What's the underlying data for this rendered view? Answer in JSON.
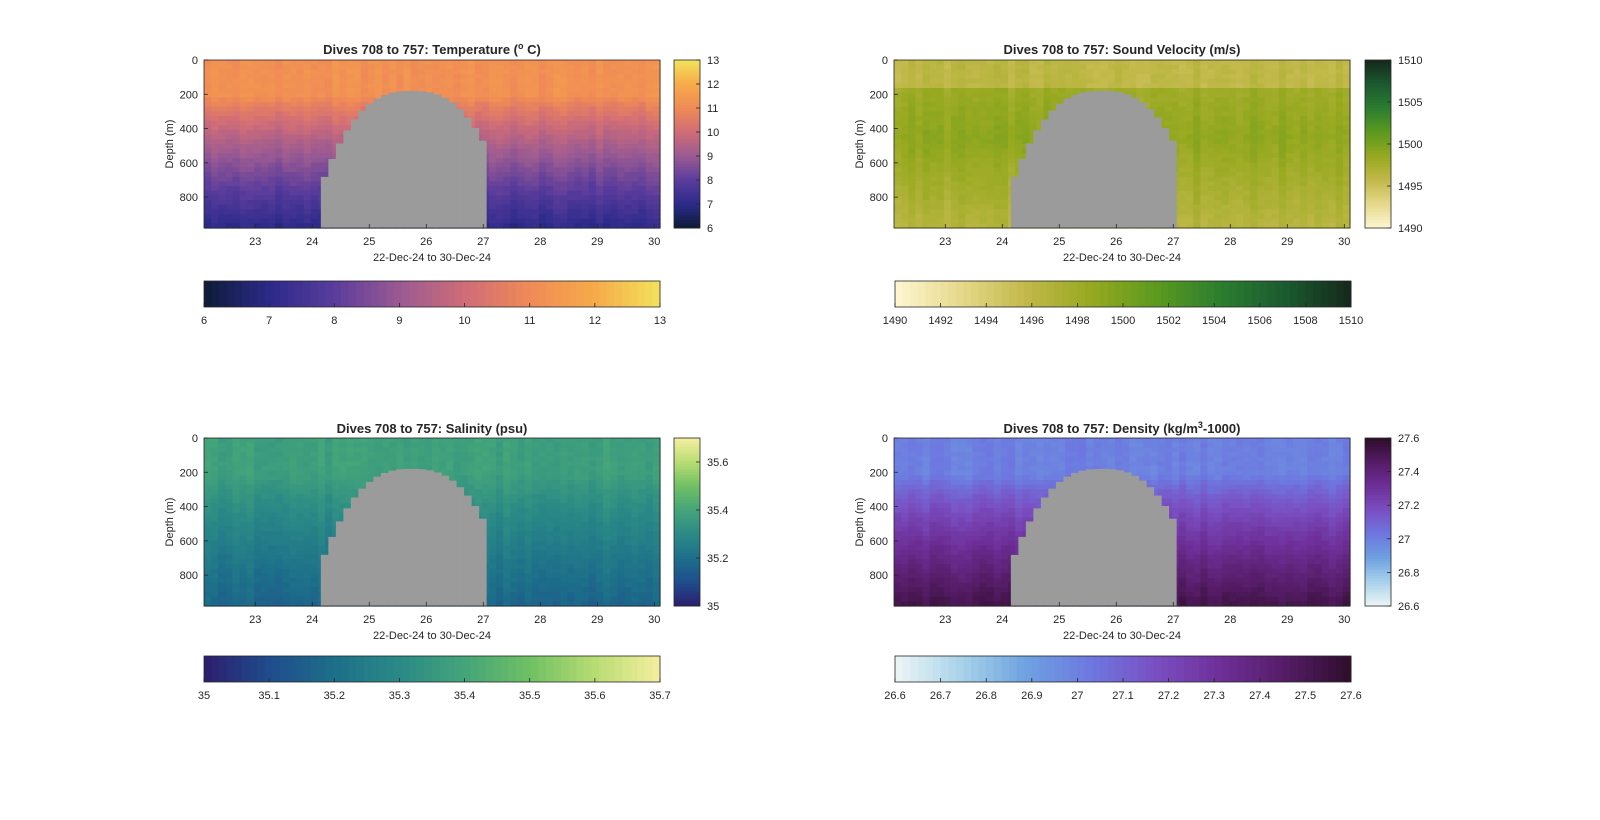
{
  "chart_data": [
    {
      "type": "heatmap",
      "title": "Dives 708 to 757: Temperature (",
      "title_sup": "o",
      "title_suffix": " C)",
      "xlabel": "22-Dec-24 to 30-Dec-24",
      "ylabel": "Depth (m)",
      "x": {
        "range": [
          22.1,
          30.1
        ],
        "ticks": [
          23,
          24,
          25,
          26,
          27,
          28,
          29,
          30
        ],
        "tick_labels": [
          "23",
          "24",
          "25",
          "26",
          "27",
          "28",
          "29",
          "30"
        ]
      },
      "y": {
        "range": [
          0,
          980
        ],
        "reversed": true,
        "ticks": [
          0,
          200,
          400,
          600,
          800
        ],
        "tick_labels": [
          "0",
          "200",
          "400",
          "600",
          "800"
        ]
      },
      "colormap": [
        "#0d1b35",
        "#2c2a8a",
        "#5a3c9c",
        "#9a5a92",
        "#cf6c78",
        "#f08a56",
        "#f6aa49",
        "#f3e25c"
      ],
      "clim": [
        6,
        13
      ],
      "side_colorbar": {
        "ticks": [
          6,
          7,
          8,
          9,
          10,
          11,
          12,
          13
        ],
        "tick_labels": [
          "6",
          "7",
          "8",
          "9",
          "10",
          "11",
          "12",
          "13"
        ]
      },
      "bottom_colorbar": {
        "ticks": [
          6,
          7,
          8,
          9,
          10,
          11,
          12,
          13
        ],
        "tick_labels": [
          "6",
          "7",
          "8",
          "9",
          "10",
          "11",
          "12",
          "13"
        ]
      },
      "profile": {
        "surface_value": 11.2,
        "mixed_layer_depth": 210,
        "deep_value": 7.0
      },
      "gap": {
        "x_start": 24.15,
        "x_end": 27.05,
        "color": "#9b9b9b"
      }
    },
    {
      "type": "heatmap",
      "title": "Dives 708 to 757: Sound Velocity (m/s)",
      "xlabel": "22-Dec-24 to 30-Dec-24",
      "ylabel": "Depth (m)",
      "x": {
        "range": [
          22.1,
          30.1
        ],
        "ticks": [
          23,
          24,
          25,
          26,
          27,
          28,
          29,
          30
        ],
        "tick_labels": [
          "23",
          "24",
          "25",
          "26",
          "27",
          "28",
          "29",
          "30"
        ]
      },
      "y": {
        "range": [
          0,
          980
        ],
        "reversed": true,
        "ticks": [
          0,
          200,
          400,
          600,
          800
        ],
        "tick_labels": [
          "0",
          "200",
          "400",
          "600",
          "800"
        ]
      },
      "colormap": [
        "#fdf7d2",
        "#e6d98c",
        "#c2b94a",
        "#97a920",
        "#5c9a1f",
        "#2b7d2f",
        "#1b5a30",
        "#15281a"
      ],
      "clim": [
        1490,
        1510
      ],
      "side_colorbar": {
        "ticks": [
          1490,
          1495,
          1500,
          1505,
          1510
        ],
        "tick_labels": [
          "1490",
          "1495",
          "1500",
          "1505",
          "1510"
        ]
      },
      "bottom_colorbar": {
        "ticks": [
          1490,
          1492,
          1494,
          1496,
          1498,
          1500,
          1502,
          1504,
          1506,
          1508,
          1510
        ],
        "tick_labels": [
          "1490",
          "1492",
          "1494",
          "1496",
          "1498",
          "1500",
          "1502",
          "1504",
          "1506",
          "1508",
          "1510"
        ]
      },
      "profile": {
        "surface_value": 1496.0,
        "mixed_layer_depth": 160,
        "deep_value": 1496.5,
        "mid_value": 1499.0
      },
      "gap": {
        "x_start": 24.15,
        "x_end": 27.05,
        "color": "#9b9b9b"
      }
    },
    {
      "type": "heatmap",
      "title": "Dives 708 to 757: Salinity (psu)",
      "xlabel": "22-Dec-24 to 30-Dec-24",
      "ylabel": "Depth (m)",
      "x": {
        "range": [
          22.1,
          30.1
        ],
        "ticks": [
          23,
          24,
          25,
          26,
          27,
          28,
          29,
          30
        ],
        "tick_labels": [
          "23",
          "24",
          "25",
          "26",
          "27",
          "28",
          "29",
          "30"
        ]
      },
      "y": {
        "range": [
          0,
          980
        ],
        "reversed": true,
        "ticks": [
          0,
          200,
          400,
          600,
          800
        ],
        "tick_labels": [
          "0",
          "200",
          "400",
          "600",
          "800"
        ]
      },
      "colormap": [
        "#2d1e6e",
        "#1f4c8c",
        "#1d6f8a",
        "#2a8a86",
        "#44a47a",
        "#6fc063",
        "#b8dc74",
        "#f4ee9e"
      ],
      "clim": [
        35,
        35.7
      ],
      "side_colorbar": {
        "ticks": [
          35,
          35.2,
          35.4,
          35.6
        ],
        "tick_labels": [
          "35",
          "35.2",
          "35.4",
          "35.6"
        ]
      },
      "bottom_colorbar": {
        "ticks": [
          35,
          35.1,
          35.2,
          35.3,
          35.4,
          35.5,
          35.6,
          35.7
        ],
        "tick_labels": [
          "35",
          "35.1",
          "35.2",
          "35.3",
          "35.4",
          "35.5",
          "35.6",
          "35.7"
        ]
      },
      "profile": {
        "surface_value": 35.38,
        "mixed_layer_depth": 220,
        "deep_value": 35.17
      },
      "gap": {
        "x_start": 24.15,
        "x_end": 27.05,
        "color": "#9b9b9b"
      }
    },
    {
      "type": "heatmap",
      "title": "Dives 708 to 757: Density (kg/m",
      "title_sup": "3",
      "title_suffix": "-1000)",
      "xlabel": "22-Dec-24 to 30-Dec-24",
      "ylabel": "Depth (m)",
      "x": {
        "range": [
          22.1,
          30.1
        ],
        "ticks": [
          23,
          24,
          25,
          26,
          27,
          28,
          29,
          30
        ],
        "tick_labels": [
          "23",
          "24",
          "25",
          "26",
          "27",
          "28",
          "29",
          "30"
        ]
      },
      "y": {
        "range": [
          0,
          980
        ],
        "reversed": true,
        "ticks": [
          0,
          200,
          400,
          600,
          800
        ],
        "tick_labels": [
          "0",
          "200",
          "400",
          "600",
          "800"
        ]
      },
      "colormap": [
        "#eef6f6",
        "#a9d3ea",
        "#6fa2e0",
        "#6d78e0",
        "#7a4fc2",
        "#6e2f98",
        "#551c66",
        "#2e0d2b"
      ],
      "clim": [
        26.6,
        27.6
      ],
      "side_colorbar": {
        "ticks": [
          26.6,
          26.8,
          27,
          27.2,
          27.4,
          27.6
        ],
        "tick_labels": [
          "26.6",
          "26.8",
          "27",
          "27.2",
          "27.4",
          "27.6"
        ]
      },
      "bottom_colorbar": {
        "ticks": [
          26.6,
          26.7,
          26.8,
          26.9,
          27,
          27.1,
          27.2,
          27.3,
          27.4,
          27.5,
          27.6
        ],
        "tick_labels": [
          "26.6",
          "26.7",
          "26.8",
          "26.9",
          "27",
          "27.1",
          "27.2",
          "27.3",
          "27.4",
          "27.5",
          "27.6"
        ]
      },
      "profile": {
        "surface_value": 27.0,
        "mixed_layer_depth": 220,
        "deep_value": 27.52
      },
      "gap": {
        "x_start": 24.15,
        "x_end": 27.05,
        "color": "#9b9b9b"
      }
    }
  ]
}
